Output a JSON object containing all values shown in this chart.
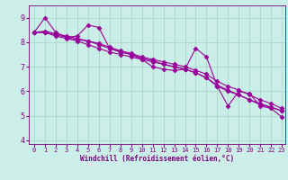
{
  "xlabel": "Windchill (Refroidissement éolien,°C)",
  "background_color": "#cceee8",
  "grid_color": "#aaddcc",
  "line_color": "#990099",
  "marker_color": "#990099",
  "xlim_min": -0.5,
  "xlim_max": 23.3,
  "ylim_min": 3.85,
  "ylim_max": 9.5,
  "yticks": [
    4,
    5,
    6,
    7,
    8,
    9
  ],
  "xticks": [
    0,
    1,
    2,
    3,
    4,
    5,
    6,
    7,
    8,
    9,
    10,
    11,
    12,
    13,
    14,
    15,
    16,
    17,
    18,
    19,
    20,
    21,
    22,
    23
  ],
  "series": [
    [
      8.4,
      9.0,
      8.4,
      8.2,
      8.25,
      8.7,
      8.6,
      7.75,
      7.6,
      7.5,
      7.3,
      7.0,
      6.9,
      6.85,
      6.9,
      7.75,
      7.4,
      6.2,
      5.4,
      6.0,
      5.9,
      5.4,
      5.3,
      4.95
    ],
    [
      8.4,
      8.4,
      8.3,
      8.2,
      8.1,
      8.05,
      7.95,
      7.8,
      7.65,
      7.55,
      7.4,
      7.3,
      7.2,
      7.1,
      7.0,
      6.85,
      6.7,
      6.4,
      6.2,
      6.05,
      5.85,
      5.65,
      5.5,
      5.3
    ],
    [
      8.4,
      8.45,
      8.35,
      8.25,
      8.15,
      8.05,
      7.9,
      7.75,
      7.6,
      7.5,
      7.35,
      7.25,
      7.1,
      7.0,
      6.9,
      6.75,
      6.55,
      6.25,
      6.05,
      5.85,
      5.65,
      5.45,
      5.35,
      5.2
    ],
    [
      8.4,
      8.4,
      8.25,
      8.15,
      8.05,
      7.9,
      7.75,
      7.6,
      7.5,
      7.4,
      7.3,
      7.2,
      7.1,
      7.0,
      6.9,
      6.75,
      6.55,
      6.2,
      6.0,
      5.85,
      5.65,
      5.5,
      5.35,
      5.2
    ]
  ],
  "xlabel_fontsize": 5.5,
  "tick_fontsize_x": 5,
  "tick_fontsize_y": 6,
  "linewidth": 0.8,
  "markersize": 2.5
}
